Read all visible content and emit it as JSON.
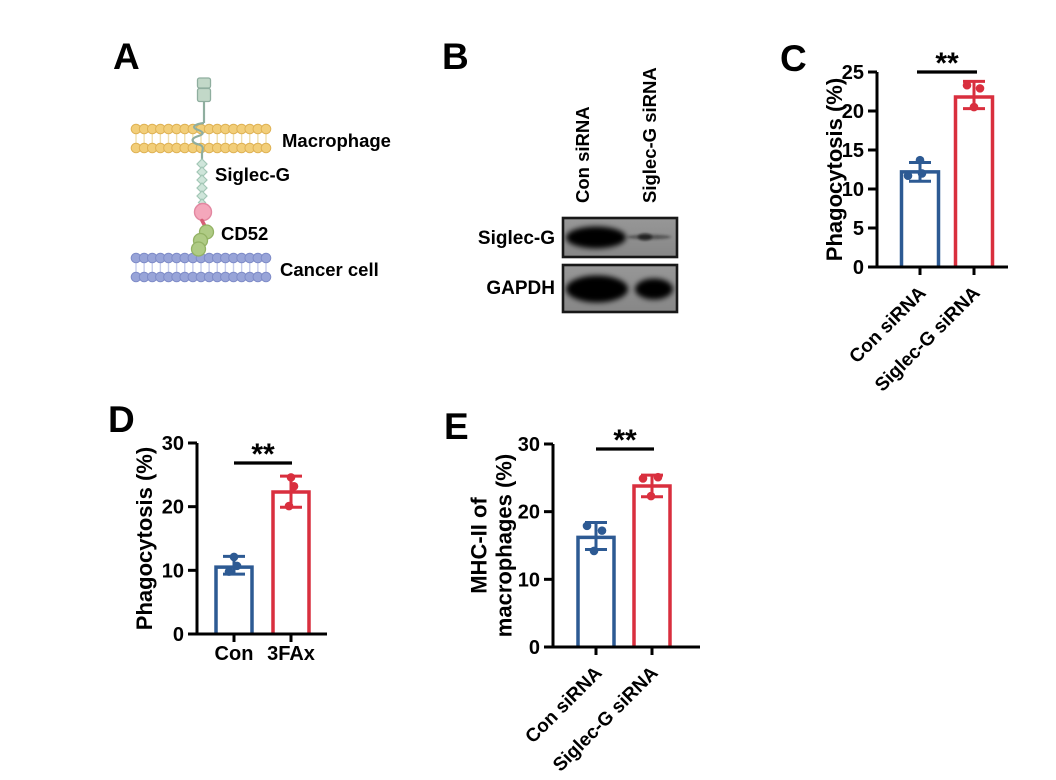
{
  "panels": {
    "a": {
      "letter": "A",
      "labels": {
        "macrophage": "Macrophage",
        "siglec_g": "Siglec-G",
        "cd52": "CD52",
        "cancer_cell": "Cancer cell"
      }
    },
    "b": {
      "letter": "B",
      "lane_labels": [
        "Con siRNA",
        "Siglec-G siRNA"
      ],
      "row_labels": [
        "Siglec-G",
        "GAPDH"
      ]
    },
    "c": {
      "letter": "C"
    },
    "d": {
      "letter": "D"
    },
    "e": {
      "letter": "E"
    }
  },
  "colors": {
    "bar_blue": "#2D5A93",
    "bar_red": "#D92F3E",
    "axis_black": "#000000",
    "membrane_macrophage_head": "#F2CE79",
    "membrane_macrophage_stroke": "#DFB254",
    "membrane_macrophage_tail": "#EFE0B0",
    "membrane_cancer_head": "#98A4D8",
    "membrane_cancer_stroke": "#7F8CC8",
    "membrane_cancer_tail": "#C8CEEC",
    "receptor_fill": "#C2D8C8",
    "receptor_stroke": "#8FAE9F",
    "diamond_fill": "#CFE5DA",
    "diamond_stroke": "#A3C7B6",
    "ligand_pink_fill": "#F4A7BB",
    "ligand_pink_stroke": "#E287A0",
    "linker_pink": "#D65E77",
    "glycan_green_fill": "#AFCB85",
    "glycan_green_stroke": "#93B264",
    "blot_background": "#8E8E8E",
    "blot_band": "#060606",
    "blot_border": "#181818"
  },
  "chart_data": [
    {
      "panel": "C",
      "type": "bar",
      "ylabel": "Phagocytosis (%)",
      "ylabel_lines": [
        "Phagocytosis (%)"
      ],
      "ylim": [
        0,
        25
      ],
      "yticks": [
        0,
        5,
        10,
        15,
        20,
        25
      ],
      "categories": [
        "Con siRNA",
        "Siglec-G siRNA"
      ],
      "series_colors": [
        "#2D5A93",
        "#D92F3E"
      ],
      "bars": [
        {
          "category": "Con siRNA",
          "mean": 12.2,
          "error_low": 11.0,
          "error_high": 13.4,
          "points": [
            11.7,
            12.0,
            13.7
          ]
        },
        {
          "category": "Siglec-G siRNA",
          "mean": 21.8,
          "error_low": 20.3,
          "error_high": 23.8,
          "points": [
            20.5,
            22.9,
            23.3
          ]
        }
      ],
      "significance": "**",
      "xtick_rotation": 45,
      "grid": false,
      "legend": "none"
    },
    {
      "panel": "D",
      "type": "bar",
      "ylabel": "Phagocytosis (%)",
      "ylabel_lines": [
        "Phagocytosis (%)"
      ],
      "ylim": [
        0,
        30
      ],
      "yticks": [
        0,
        10,
        20,
        30
      ],
      "categories": [
        "Con",
        "3FAx"
      ],
      "series_colors": [
        "#2D5A93",
        "#D92F3E"
      ],
      "bars": [
        {
          "category": "Con",
          "mean": 10.5,
          "error_low": 9.4,
          "error_high": 12.2,
          "points": [
            9.8,
            10.7,
            12.1
          ]
        },
        {
          "category": "3FAx",
          "mean": 22.3,
          "error_low": 19.9,
          "error_high": 24.8,
          "points": [
            20.1,
            23.2,
            24.6
          ]
        }
      ],
      "significance": "**",
      "xtick_rotation": 0,
      "grid": false,
      "legend": "none"
    },
    {
      "panel": "E",
      "type": "bar",
      "ylabel": "MHC-II of macrophages (%)",
      "ylabel_lines": [
        "MHC-II of",
        "macrophages (%)"
      ],
      "ylim": [
        0,
        30
      ],
      "yticks": [
        0,
        10,
        20,
        30
      ],
      "categories": [
        "Con siRNA",
        "Siglec-G siRNA"
      ],
      "series_colors": [
        "#2D5A93",
        "#D92F3E"
      ],
      "bars": [
        {
          "category": "Con siRNA",
          "mean": 16.2,
          "error_low": 14.4,
          "error_high": 18.4,
          "points": [
            14.2,
            17.2,
            17.9
          ]
        },
        {
          "category": "Siglec-G siRNA",
          "mean": 23.8,
          "error_low": 22.2,
          "error_high": 25.4,
          "points": [
            22.3,
            24.9,
            25.1
          ]
        }
      ],
      "significance": "**",
      "xtick_rotation": 45,
      "grid": false,
      "legend": "none"
    }
  ]
}
